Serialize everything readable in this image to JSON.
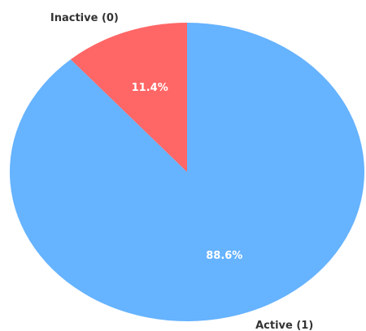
{
  "chart_data": {
    "type": "pie",
    "categories": [
      "Inactive (0)",
      "Active (1)"
    ],
    "values": [
      11.4,
      88.6
    ],
    "value_labels": [
      "11.4%",
      "88.6%"
    ],
    "colors": [
      "#ff6666",
      "#66b3ff"
    ],
    "start_angle_deg": 90,
    "direction": "counterclockwise",
    "legend": "none"
  }
}
